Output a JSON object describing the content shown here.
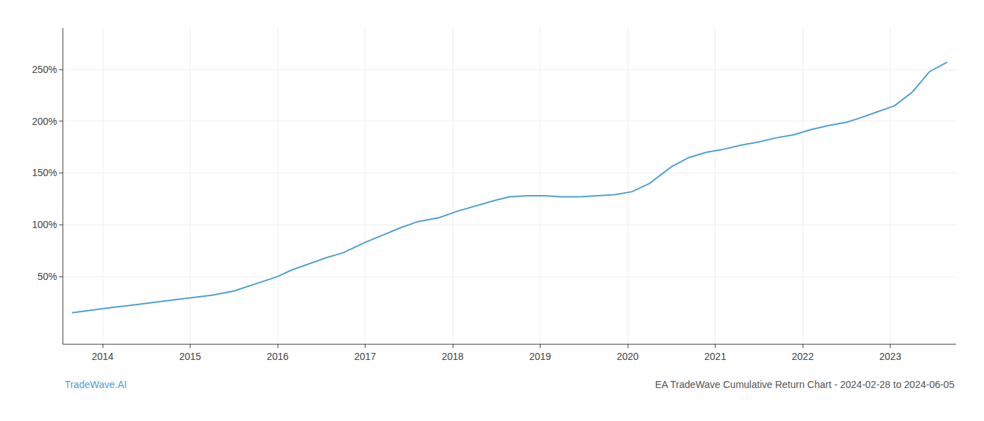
{
  "chart_data": {
    "type": "line",
    "x": [
      2013.65,
      2013.9,
      2014.1,
      2014.3,
      2014.6,
      2014.85,
      2015.05,
      2015.25,
      2015.5,
      2015.75,
      2016.0,
      2016.15,
      2016.35,
      2016.55,
      2016.75,
      2017.0,
      2017.2,
      2017.4,
      2017.6,
      2017.85,
      2018.05,
      2018.25,
      2018.5,
      2018.65,
      2018.85,
      2019.05,
      2019.25,
      2019.45,
      2019.65,
      2019.85,
      2020.05,
      2020.25,
      2020.5,
      2020.7,
      2020.9,
      2021.1,
      2021.3,
      2021.5,
      2021.7,
      2021.9,
      2022.1,
      2022.3,
      2022.5,
      2022.65,
      2022.85,
      2023.05,
      2023.25,
      2023.45,
      2023.65
    ],
    "values": [
      15,
      18,
      20,
      22,
      25,
      28,
      30,
      32,
      36,
      43,
      50,
      56,
      62,
      68,
      73,
      83,
      90,
      97,
      103,
      107,
      113,
      118,
      124,
      127,
      128,
      128,
      127,
      127,
      128,
      129,
      132,
      140,
      156,
      165,
      170,
      173,
      177,
      180,
      184,
      187,
      192,
      196,
      199,
      203,
      209,
      215,
      228,
      248,
      257
    ],
    "color": "#4a9fd4",
    "xlim": [
      2013.55,
      2023.75
    ],
    "xticks": [
      2014,
      2015,
      2016,
      2017,
      2018,
      2019,
      2020,
      2021,
      2022,
      2023
    ],
    "ylim": [
      -15,
      290
    ],
    "yticks": [
      {
        "value": 50,
        "label": "50%"
      },
      {
        "value": 100,
        "label": "100%"
      },
      {
        "value": 150,
        "label": "150%"
      },
      {
        "value": 200,
        "label": "200%"
      },
      {
        "value": 250,
        "label": "250%"
      }
    ],
    "grid": true,
    "annotations": [
      "TradeWave.AI",
      "EA TradeWave Cumulative Return Chart - 2024-02-28 to 2024-06-05"
    ]
  }
}
